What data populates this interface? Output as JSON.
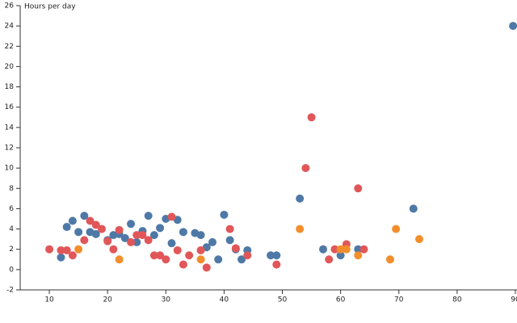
{
  "chart_data": {
    "type": "scatter",
    "y_label": "Hours per day",
    "xlim": [
      5,
      90
    ],
    "xticks": [
      10,
      20,
      30,
      40,
      50,
      60,
      70,
      80,
      90
    ],
    "ylim": [
      -2,
      26
    ],
    "yticks": [
      -2,
      0,
      2,
      4,
      6,
      8,
      10,
      12,
      14,
      16,
      18,
      20,
      22,
      24,
      26
    ],
    "series": [
      {
        "color": "#4e79a7",
        "x": [
          12,
          13,
          14,
          15,
          16,
          17,
          18,
          20,
          21,
          22,
          23,
          24,
          25,
          26,
          27,
          28,
          29,
          30,
          31,
          32,
          33,
          35,
          36,
          37,
          38,
          39,
          40,
          41,
          42,
          43,
          44,
          48,
          49,
          53,
          57,
          60,
          63,
          72.5,
          89.6
        ],
        "values": [
          1.2,
          4.2,
          4.8,
          3.7,
          5.3,
          3.7,
          3.5,
          2.9,
          3.4,
          3.5,
          3.1,
          4.5,
          2.7,
          3.8,
          5.3,
          3.4,
          4.1,
          5.0,
          2.6,
          4.9,
          3.7,
          3.6,
          3.4,
          2.2,
          2.7,
          1.0,
          5.4,
          2.9,
          2.0,
          1.0,
          1.9,
          1.4,
          1.4,
          7.0,
          2.0,
          1.4,
          2.0,
          6.0,
          24.0
        ]
      },
      {
        "color": "#e15759",
        "x": [
          10,
          12,
          13,
          14,
          16,
          17,
          18,
          19,
          20,
          21,
          22,
          24,
          25,
          26,
          27,
          28,
          29,
          30,
          31,
          32,
          33,
          34,
          36,
          37,
          41,
          42,
          44,
          49,
          54,
          55,
          58,
          59,
          61,
          63,
          64
        ],
        "values": [
          2.0,
          1.9,
          1.9,
          1.4,
          2.9,
          4.8,
          4.4,
          4.0,
          2.8,
          2.0,
          3.9,
          2.7,
          3.4,
          3.4,
          2.9,
          1.4,
          1.4,
          1.0,
          5.2,
          1.9,
          0.5,
          1.4,
          1.9,
          0.2,
          4.0,
          2.1,
          1.4,
          0.5,
          10.0,
          15.0,
          1.0,
          2.0,
          2.5,
          8.0,
          2.0
        ]
      },
      {
        "color": "#f28e2b",
        "x": [
          15,
          22,
          36,
          53,
          60,
          61,
          63,
          68.5,
          69.5,
          73.5
        ],
        "values": [
          2.0,
          1.0,
          1.0,
          4.0,
          2.0,
          2.0,
          1.4,
          1.0,
          4.0,
          3.0
        ]
      }
    ]
  }
}
